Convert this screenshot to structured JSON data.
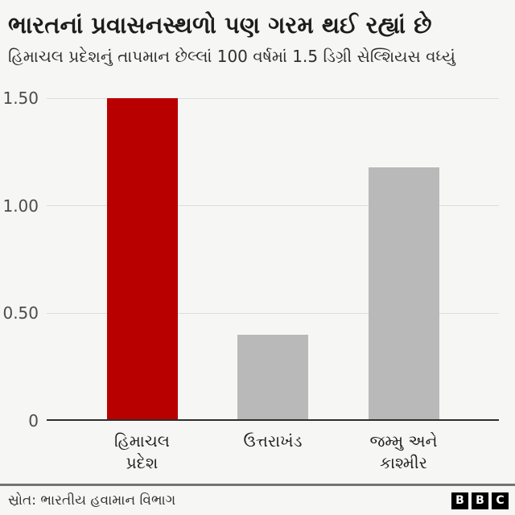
{
  "header": {
    "title": "ભારતનાં પ્રવાસનસ્થળો પણ ગરમ થઈ રહ્યાં છે",
    "subtitle": "હિમાચલ પ્રદેશનું તાપમાન છેલ્લાં 100 વર્ષમાં 1.5 ડિગ્રી સેલ્શિયસ વધ્યું"
  },
  "chart_data": {
    "type": "bar",
    "title": "ભારતનાં પ્રવાસનસ્થળો પણ ગરમ થઈ રહ્યાં છે",
    "subtitle": "હિમાચલ પ્રદેશનું તાપમાન છેલ્લાં 100 વર્ષમાં 1.5 ડિગ્રી સેલ્શિયસ વધ્યું",
    "categories": [
      "હિમાચલ પ્રદેશ",
      "ઉત્તરાખંડ",
      "જમ્મુ અને કાશ્મીર"
    ],
    "category_display": [
      "હિમાચલ\nપ્રદેશ",
      "ઉત્તરાખંડ",
      "જમ્મુ અને\nકાશ્મીર"
    ],
    "values": [
      1.5,
      0.4,
      1.18
    ],
    "bar_colors": [
      "#b80000",
      "#b9b9b9",
      "#b9b9b9"
    ],
    "xlabel": "",
    "ylabel": "",
    "ylim": [
      0,
      1.5
    ],
    "yticks": [
      {
        "label": "0",
        "value": 0
      },
      {
        "label": "0.50",
        "value": 0.5
      },
      {
        "label": "1.00",
        "value": 1.0
      },
      {
        "label": "1.50",
        "value": 1.5
      }
    ],
    "grid": true,
    "legend": false
  },
  "footer": {
    "source": "સ્રોત: ભારતીય હવામાન વિભાગ",
    "logo_letters": [
      "B",
      "B",
      "C"
    ]
  },
  "colors": {
    "accent_red": "#b80000",
    "bar_gray": "#b9b9b9",
    "background": "#f6f6f4",
    "gridline": "#dddddc",
    "axis_line": "#2e2e2c",
    "divider": "#757474"
  }
}
